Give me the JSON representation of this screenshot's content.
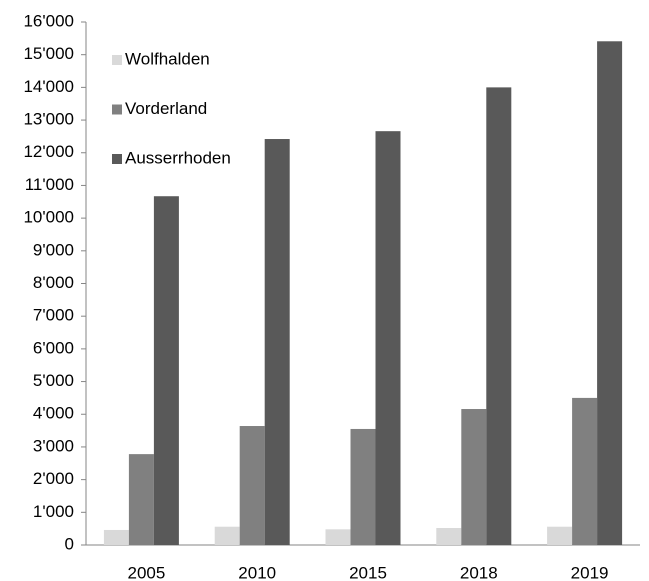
{
  "chart_data": {
    "type": "bar",
    "categories": [
      "2005",
      "2010",
      "2015",
      "2018",
      "2019"
    ],
    "series": [
      {
        "name": "Wolfhalden",
        "color": "#d9d9d9",
        "values": [
          460,
          560,
          480,
          520,
          560
        ]
      },
      {
        "name": "Vorderland",
        "color": "#808080",
        "values": [
          2780,
          3640,
          3550,
          4160,
          4500
        ]
      },
      {
        "name": "Ausserrhoden",
        "color": "#595959",
        "values": [
          10670,
          12420,
          12660,
          14000,
          15410
        ]
      }
    ],
    "ylim": [
      0,
      16000
    ],
    "yticks": [
      0,
      {
        "value": 1000,
        "label": "1'000"
      },
      {
        "value": 2000,
        "label": "2'000"
      },
      {
        "value": 3000,
        "label": "3'000"
      },
      {
        "value": 4000,
        "label": "4'000"
      },
      {
        "value": 5000,
        "label": "5'000"
      },
      {
        "value": 6000,
        "label": "6'000"
      },
      {
        "value": 7000,
        "label": "7'000"
      },
      {
        "value": 8000,
        "label": "8'000"
      },
      {
        "value": 9000,
        "label": "9'000"
      },
      {
        "value": 10000,
        "label": "10'000"
      },
      {
        "value": 11000,
        "label": "11'000"
      },
      {
        "value": 12000,
        "label": "12'000"
      },
      {
        "value": 13000,
        "label": "13'000"
      },
      {
        "value": 14000,
        "label": "14'000"
      },
      {
        "value": 15000,
        "label": "15'000"
      },
      {
        "value": 16000,
        "label": "16'000"
      }
    ],
    "legend": "upper left"
  }
}
